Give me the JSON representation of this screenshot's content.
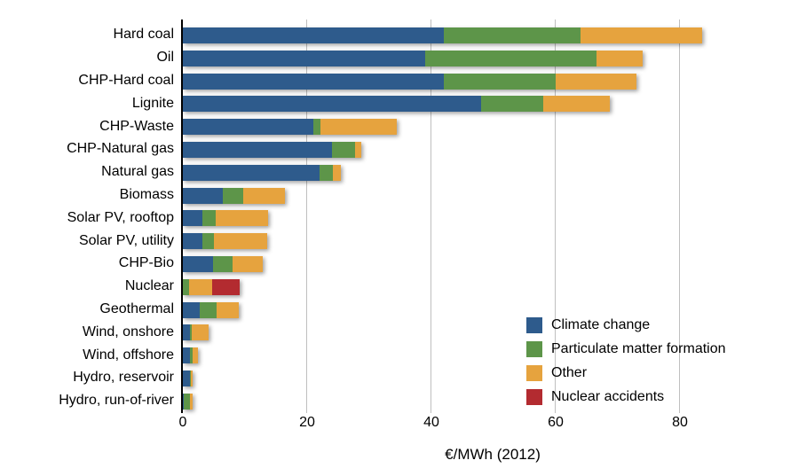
{
  "colors": {
    "climate_change": "#2E5B8C",
    "particulate_matter": "#5D9549",
    "other": "#E6A33E",
    "nuclear_accidents": "#B32B30",
    "gridline": "#BFBFBF",
    "axis": "#000000",
    "text": "#000000",
    "background": "#FFFFFF"
  },
  "chart_data": {
    "type": "bar",
    "orientation": "horizontal",
    "stacked": true,
    "title": "",
    "xlabel": "€/MWh (2012)",
    "ylabel": "",
    "x_ticks": [
      0,
      20,
      40,
      60,
      80
    ],
    "xlim": [
      0,
      94
    ],
    "grid": "vertical",
    "legend_position": "inside-bottom-right",
    "categories": [
      "Hard coal",
      "Oil",
      "CHP-Hard coal",
      "Lignite",
      "CHP-Waste",
      "CHP-Natural gas",
      "Natural gas",
      "Biomass",
      "Solar PV, rooftop",
      "Solar PV, utility",
      "CHP-Bio",
      "Nuclear",
      "Geothermal",
      "Wind, onshore",
      "Wind, offshore",
      "Hydro, reservoir",
      "Hydro, run-of-river"
    ],
    "series": [
      {
        "name": "Climate change",
        "color": "#2E5B8C",
        "values": [
          42,
          39,
          42,
          48,
          21,
          24,
          22,
          6.4,
          3.2,
          3.2,
          4.9,
          0,
          2.7,
          1.1,
          1.2,
          1.1,
          0.1
        ]
      },
      {
        "name": "Particulate matter formation",
        "color": "#5D9549",
        "values": [
          22,
          27.5,
          18,
          10,
          1.2,
          3.7,
          2.2,
          3.3,
          2.1,
          1.8,
          3.1,
          1.0,
          2.7,
          0.4,
          0.4,
          0.2,
          1.1
        ]
      },
      {
        "name": "Other",
        "color": "#E6A33E",
        "values": [
          19.5,
          7.5,
          13,
          10.7,
          12.3,
          1.0,
          1.2,
          6.7,
          8.4,
          8.6,
          4.9,
          3.7,
          3.6,
          2.6,
          0.8,
          0.3,
          0.4
        ]
      },
      {
        "name": "Nuclear accidents",
        "color": "#B32B30",
        "values": [
          0,
          0,
          0,
          0,
          0,
          0,
          0,
          0,
          0,
          0,
          0,
          4.5,
          0,
          0,
          0,
          0,
          0
        ]
      }
    ]
  }
}
